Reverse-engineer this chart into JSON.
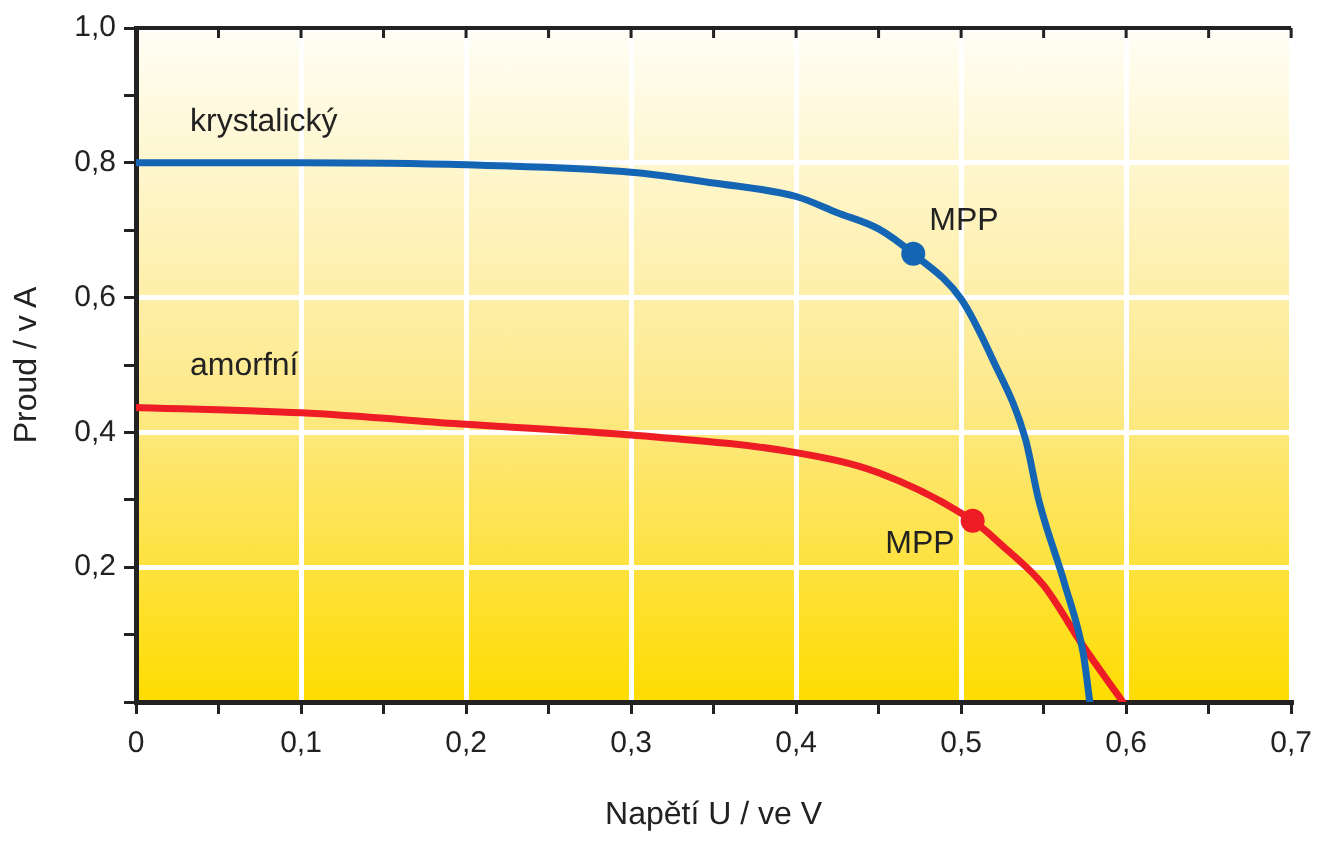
{
  "chart_data": {
    "type": "line",
    "xlabel": "Napětí U / ve V",
    "ylabel": "Proud / v A",
    "xlim": [
      0,
      0.7
    ],
    "ylim": [
      0,
      1.0
    ],
    "xticks": [
      {
        "value": 0,
        "label": "0"
      },
      {
        "value": 0.05,
        "label": null
      },
      {
        "value": 0.1,
        "label": "0,1"
      },
      {
        "value": 0.15,
        "label": null
      },
      {
        "value": 0.2,
        "label": "0,2"
      },
      {
        "value": 0.25,
        "label": null
      },
      {
        "value": 0.3,
        "label": "0,3"
      },
      {
        "value": 0.35,
        "label": null
      },
      {
        "value": 0.4,
        "label": "0,4"
      },
      {
        "value": 0.45,
        "label": null
      },
      {
        "value": 0.5,
        "label": "0,5"
      },
      {
        "value": 0.55,
        "label": null
      },
      {
        "value": 0.6,
        "label": "0,6"
      },
      {
        "value": 0.65,
        "label": null
      },
      {
        "value": 0.7,
        "label": "0,7"
      }
    ],
    "yticks": [
      {
        "value": 0,
        "label": null
      },
      {
        "value": 0.1,
        "label": null
      },
      {
        "value": 0.2,
        "label": "0,2"
      },
      {
        "value": 0.3,
        "label": null
      },
      {
        "value": 0.4,
        "label": "0,4"
      },
      {
        "value": 0.5,
        "label": null
      },
      {
        "value": 0.6,
        "label": "0,6"
      },
      {
        "value": 0.7,
        "label": null
      },
      {
        "value": 0.8,
        "label": "0,8"
      },
      {
        "value": 0.9,
        "label": null
      },
      {
        "value": 1.0,
        "label": "1,0"
      }
    ],
    "grid": true,
    "legend": false,
    "marker": "none",
    "line_style": "solid",
    "series": [
      {
        "name": "krystalický",
        "color": "#1565b5",
        "x": [
          0,
          0.1,
          0.2,
          0.3,
          0.35,
          0.4,
          0.425,
          0.45,
          0.471,
          0.5,
          0.519,
          0.539,
          0.547,
          0.563,
          0.574,
          0.578
        ],
        "values": [
          0.8,
          0.8,
          0.797,
          0.786,
          0.77,
          0.75,
          0.726,
          0.702,
          0.665,
          0.598,
          0.509,
          0.39,
          0.3,
          0.173,
          0.072,
          0
        ]
      },
      {
        "name": "amorfní",
        "color": "#ee1c25",
        "x": [
          0,
          0.1,
          0.2,
          0.3,
          0.4,
          0.45,
          0.507,
          0.525,
          0.55,
          0.574,
          0.598
        ],
        "values": [
          0.437,
          0.429,
          0.412,
          0.396,
          0.37,
          0.34,
          0.269,
          0.232,
          0.173,
          0.083,
          0
        ]
      },
      {
        "type": "scatter",
        "marker": "circle",
        "color": "#1565b5",
        "x": [
          0.471
        ],
        "values": [
          0.665
        ]
      },
      {
        "type": "scatter",
        "marker": "circle",
        "color": "#ee1c25",
        "x": [
          0.507
        ],
        "values": [
          0.269
        ]
      }
    ],
    "annotations": [
      {
        "text": "MPP",
        "x": 0.471,
        "y": 0.665
      },
      {
        "text": "MPP",
        "x": 0.507,
        "y": 0.269
      }
    ]
  }
}
